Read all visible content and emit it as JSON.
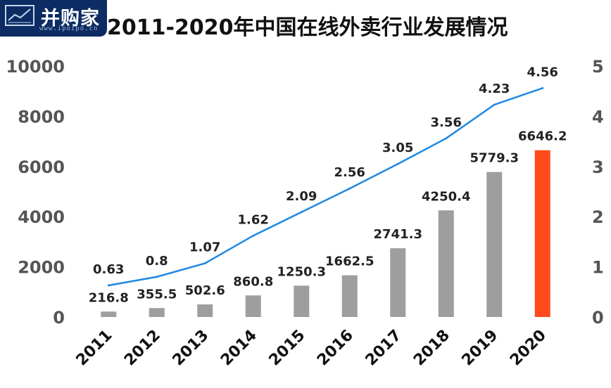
{
  "logo": {
    "name": "并购家",
    "url": "www.ipoipo.cn"
  },
  "chart_data": {
    "type": "bar",
    "title": "2011-2020年中国在线外卖行业发展情况",
    "categories": [
      "2011",
      "2012",
      "2013",
      "2014",
      "2015",
      "2016",
      "2017",
      "2018",
      "2019",
      "2020"
    ],
    "series": [
      {
        "values": [
          216.8,
          355.5,
          502.6,
          860.8,
          1250.3,
          1662.5,
          2741.3,
          4250.4,
          5779.3,
          6646.2
        ],
        "type": "bar",
        "axis": "left",
        "color": "#9e9e9e",
        "highlight_color": "#ff4a1c"
      },
      {
        "values": [
          0.63,
          0.8,
          1.07,
          1.62,
          2.09,
          2.56,
          3.05,
          3.56,
          4.23,
          4.56
        ],
        "type": "line",
        "axis": "right",
        "color": "#1e88e5"
      }
    ],
    "y_left": {
      "ylim": [
        0,
        10000
      ],
      "ticks": [
        "0",
        "2000",
        "4000",
        "6000",
        "8000",
        "10000"
      ]
    },
    "y_right": {
      "ylim": [
        0,
        5
      ],
      "ticks": [
        "0",
        "1",
        "2",
        "3",
        "4",
        "5"
      ]
    },
    "grid": false,
    "legend": "none"
  }
}
